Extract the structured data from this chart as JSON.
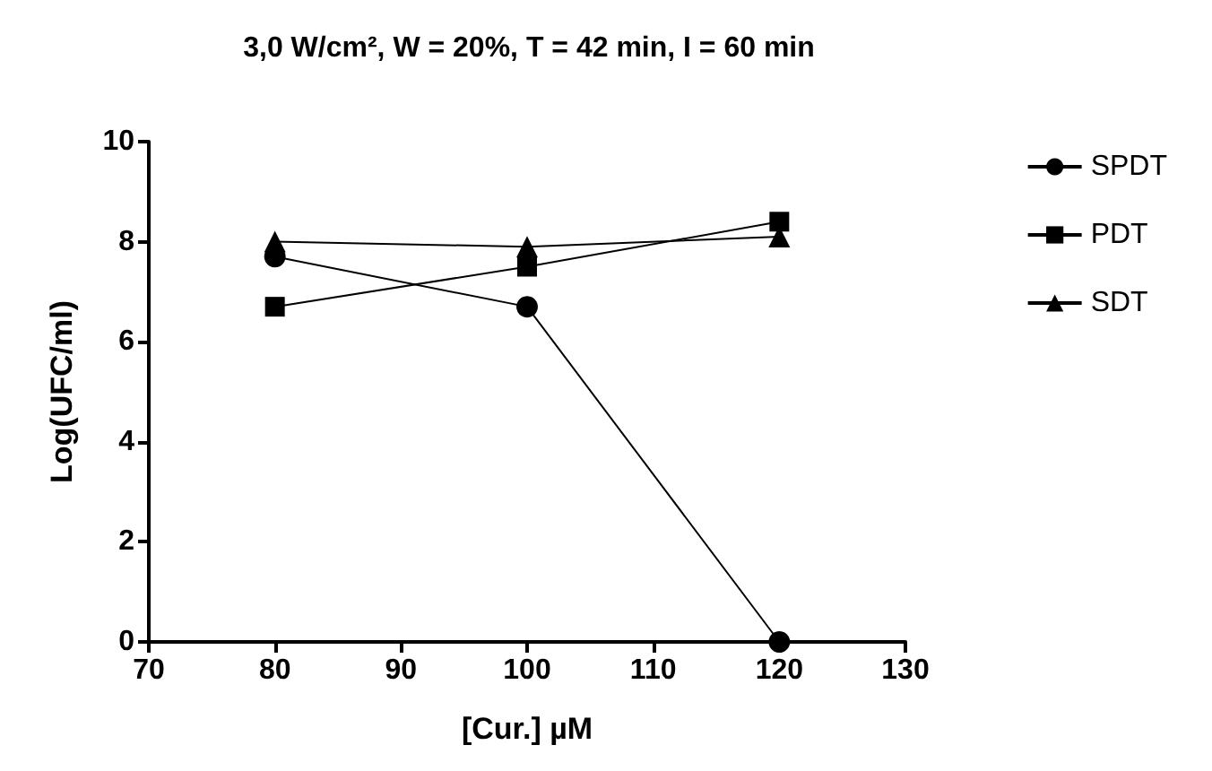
{
  "chart_data": {
    "type": "line",
    "title": "3,0 W/cm², W = 20%, T = 42 min, I = 60 min",
    "xlabel": "[Cur.] µM",
    "ylabel": "Log(UFC/ml)",
    "x": [
      80,
      100,
      120
    ],
    "series": [
      {
        "name": "SPDT",
        "color": "#000000",
        "marker": "circle",
        "values": [
          7.7,
          6.7,
          0
        ]
      },
      {
        "name": "PDT",
        "color": "#000000",
        "marker": "square",
        "values": [
          6.7,
          7.5,
          8.4
        ]
      },
      {
        "name": "SDT",
        "color": "#000000",
        "marker": "triangle",
        "values": [
          8.0,
          7.9,
          8.1
        ]
      }
    ],
    "xlim": [
      70,
      130
    ],
    "xticks": [
      70,
      80,
      90,
      100,
      110,
      120,
      130
    ],
    "ylim": [
      0,
      10
    ],
    "yticks": [
      0,
      2,
      4,
      6,
      8,
      10
    ],
    "grid": false,
    "legend": "right",
    "line_style": "solid"
  }
}
